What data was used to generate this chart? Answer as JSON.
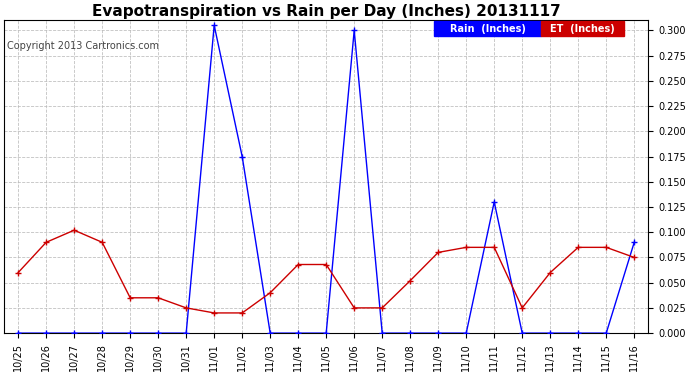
{
  "title": "Evapotranspiration vs Rain per Day (Inches) 20131117",
  "copyright": "Copyright 2013 Cartronics.com",
  "x_labels": [
    "10/25",
    "10/26",
    "10/27",
    "10/28",
    "10/29",
    "10/30",
    "10/31",
    "11/01",
    "11/02",
    "11/03",
    "11/04",
    "11/05",
    "11/06",
    "11/07",
    "11/08",
    "11/09",
    "11/10",
    "11/11",
    "11/12",
    "11/13",
    "11/14",
    "11/15",
    "11/16"
  ],
  "rain_values": [
    0.0,
    0.0,
    0.0,
    0.0,
    0.0,
    0.0,
    0.0,
    0.305,
    0.175,
    0.0,
    0.0,
    0.0,
    0.3,
    0.0,
    0.0,
    0.0,
    0.0,
    0.13,
    0.0,
    0.0,
    0.0,
    0.0,
    0.09
  ],
  "et_values": [
    0.06,
    0.09,
    0.102,
    0.09,
    0.035,
    0.035,
    0.025,
    0.02,
    0.02,
    0.04,
    0.068,
    0.068,
    0.025,
    0.025,
    0.052,
    0.08,
    0.085,
    0.085,
    0.025,
    0.06,
    0.085,
    0.085,
    0.075
  ],
  "rain_color": "#0000ff",
  "et_color": "#cc0000",
  "ylim": [
    0.0,
    0.31
  ],
  "yticks": [
    0.0,
    0.025,
    0.05,
    0.075,
    0.1,
    0.125,
    0.15,
    0.175,
    0.2,
    0.225,
    0.25,
    0.275,
    0.3
  ],
  "bg_color": "#ffffff",
  "grid_color": "#bbbbbb",
  "title_fontsize": 11,
  "copyright_fontsize": 7,
  "tick_fontsize": 7
}
